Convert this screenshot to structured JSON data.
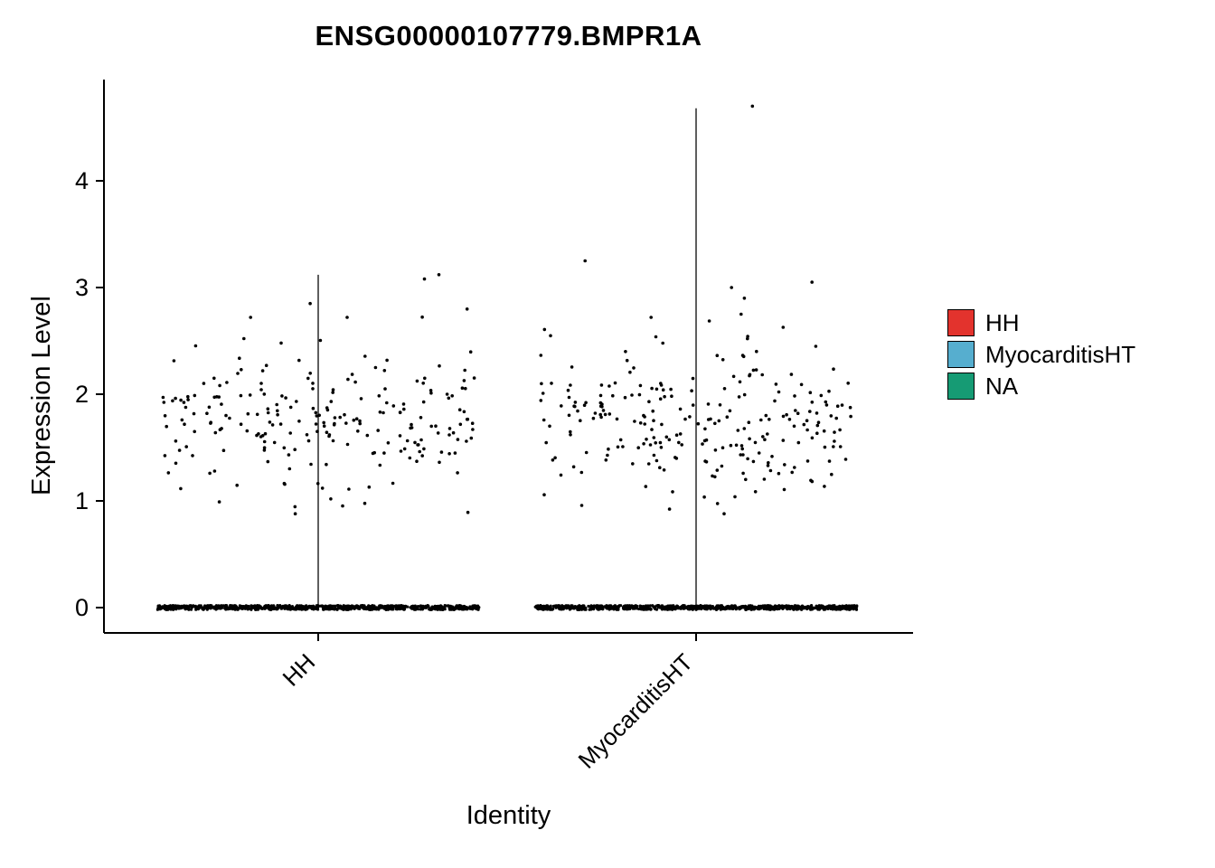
{
  "chart_data": {
    "type": "violin",
    "title": "ENSG00000107779.BMPR1A",
    "xlabel": "Identity",
    "ylabel": "Expression Level",
    "ylim": [
      -0.15,
      4.9
    ],
    "yticks": [
      0,
      1,
      2,
      3,
      4
    ],
    "categories": [
      "HH",
      "MyocarditisHT"
    ],
    "legend": [
      {
        "label": "HH",
        "color": "#E3332D"
      },
      {
        "label": "MyocarditisHT",
        "color": "#56AECF"
      },
      {
        "label": "NA",
        "color": "#169B74"
      }
    ],
    "point_color": "#000000",
    "axis_color": "#000000",
    "groups": [
      {
        "name": "HH",
        "stem_top": 3.12,
        "zero_band": {
          "count": 900,
          "y": 0
        },
        "points": {
          "count": 225,
          "mean": 1.75,
          "sd": 0.38,
          "min": 0.85,
          "max": 2.92
        },
        "outliers": [
          [
            -0.05,
            2.85
          ],
          [
            0.66,
            3.08
          ],
          [
            0.75,
            3.12
          ],
          [
            0.18,
            2.72
          ],
          [
            -0.42,
            2.72
          ]
        ]
      },
      {
        "name": "MyocarditisHT",
        "stem_top": 4.68,
        "zero_band": {
          "count": 900,
          "y": 0
        },
        "points": {
          "count": 245,
          "mean": 1.72,
          "sd": 0.38,
          "min": 0.8,
          "max": 2.8
        },
        "outliers": [
          [
            0.35,
            4.7
          ],
          [
            -0.69,
            3.25
          ],
          [
            0.22,
            3.0
          ],
          [
            0.72,
            3.05
          ],
          [
            0.3,
            2.9
          ],
          [
            -0.28,
            2.72
          ],
          [
            0.28,
            2.75
          ]
        ]
      }
    ],
    "seed": 7
  }
}
